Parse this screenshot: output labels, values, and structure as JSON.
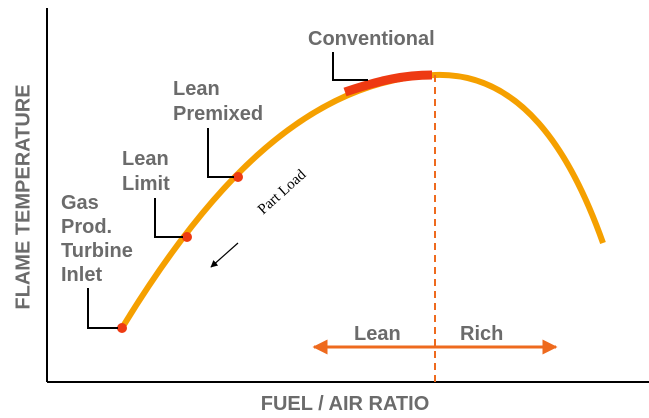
{
  "axes": {
    "x_label": "FUEL / AIR RATIO",
    "y_label": "FLAME TEMPERATURE"
  },
  "annotations": {
    "conventional": "Conventional",
    "lean_premixed": [
      "Lean",
      "Premixed"
    ],
    "lean_limit": [
      "Lean",
      "Limit"
    ],
    "gas_prod": [
      "Gas",
      "Prod.",
      "Turbine",
      "Inlet"
    ],
    "part_load": "Part Load"
  },
  "regions": {
    "lean": "Lean",
    "rich": "Rich"
  }
}
